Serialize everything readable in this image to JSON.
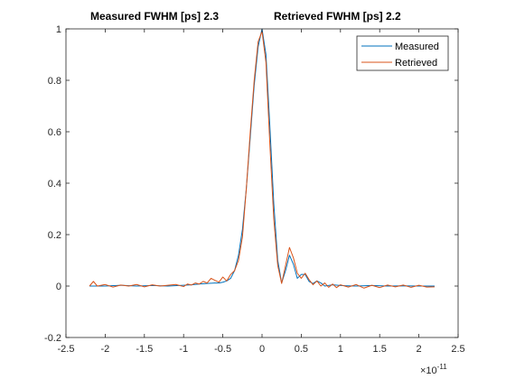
{
  "colors": {
    "measured": "#0072BD",
    "retrieved": "#D95319",
    "axis": "#262626",
    "background": "#ffffff"
  },
  "chart_data": {
    "type": "line",
    "title_left": "Measured FWHM [ps]  2.3",
    "title_right": "Retrieved FWHM [ps]  2.2",
    "xlabel": "",
    "ylabel": "",
    "xlim": [
      -2.5e-11,
      2.5e-11
    ],
    "ylim": [
      -0.2,
      1.0
    ],
    "x_exponent_label": "×10",
    "x_exponent_power": "-11",
    "x_tick_values": [
      -2.5,
      -2,
      -1.5,
      -1,
      -0.5,
      0,
      0.5,
      1,
      1.5,
      2,
      2.5
    ],
    "x_tick_labels": [
      "-2.5",
      "-2",
      "-1.5",
      "-1",
      "-0.5",
      "0",
      "0.5",
      "1",
      "1.5",
      "2",
      "2.5"
    ],
    "y_tick_values": [
      -0.2,
      0,
      0.2,
      0.4,
      0.6,
      0.8,
      1.0
    ],
    "y_tick_labels": [
      "-0.2",
      "0",
      "0.2",
      "0.4",
      "0.6",
      "0.8",
      "1"
    ],
    "grid": false,
    "legend": {
      "placement": "top-right",
      "entries": [
        "Measured",
        "Retrieved"
      ]
    },
    "series": [
      {
        "name": "Measured",
        "x": [
          -2.2,
          -2.0,
          -1.8,
          -1.6,
          -1.4,
          -1.2,
          -1.0,
          -0.9,
          -0.8,
          -0.7,
          -0.6,
          -0.55,
          -0.5,
          -0.45,
          -0.4,
          -0.35,
          -0.3,
          -0.25,
          -0.2,
          -0.15,
          -0.1,
          -0.05,
          0,
          0.05,
          0.1,
          0.15,
          0.2,
          0.25,
          0.3,
          0.35,
          0.4,
          0.45,
          0.5,
          0.55,
          0.6,
          0.65,
          0.7,
          0.75,
          0.8,
          0.9,
          1.0,
          1.2,
          1.4,
          1.6,
          1.8,
          2.0,
          2.2
        ],
        "y": [
          0.0,
          0.0,
          0.003,
          0.0,
          0.002,
          0.0,
          0.003,
          0.005,
          0.008,
          0.01,
          0.012,
          0.012,
          0.015,
          0.02,
          0.03,
          0.06,
          0.12,
          0.22,
          0.38,
          0.58,
          0.78,
          0.93,
          1.0,
          0.9,
          0.62,
          0.32,
          0.1,
          0.012,
          0.06,
          0.12,
          0.085,
          0.03,
          0.045,
          0.045,
          0.018,
          0.01,
          0.02,
          0.012,
          0.0,
          0.005,
          0.002,
          0.0,
          0.002,
          0.0,
          0.001,
          0.0,
          0.0
        ]
      },
      {
        "name": "Retrieved",
        "x": [
          -2.2,
          -2.15,
          -2.1,
          -2.0,
          -1.9,
          -1.8,
          -1.7,
          -1.6,
          -1.5,
          -1.4,
          -1.3,
          -1.2,
          -1.1,
          -1.0,
          -0.95,
          -0.9,
          -0.85,
          -0.8,
          -0.75,
          -0.7,
          -0.65,
          -0.6,
          -0.55,
          -0.5,
          -0.45,
          -0.4,
          -0.35,
          -0.3,
          -0.25,
          -0.2,
          -0.15,
          -0.1,
          -0.05,
          0,
          0.05,
          0.1,
          0.15,
          0.2,
          0.25,
          0.3,
          0.35,
          0.4,
          0.45,
          0.5,
          0.55,
          0.6,
          0.65,
          0.7,
          0.75,
          0.8,
          0.85,
          0.9,
          0.95,
          1.0,
          1.1,
          1.2,
          1.3,
          1.4,
          1.5,
          1.6,
          1.7,
          1.8,
          1.9,
          2.0,
          2.1,
          2.2
        ],
        "y": [
          0.0,
          0.018,
          0.0,
          0.006,
          -0.004,
          0.004,
          0.0,
          0.006,
          -0.003,
          0.005,
          0.0,
          0.003,
          0.006,
          -0.002,
          0.008,
          0.004,
          0.012,
          0.008,
          0.018,
          0.012,
          0.03,
          0.022,
          0.015,
          0.035,
          0.02,
          0.045,
          0.06,
          0.1,
          0.19,
          0.38,
          0.6,
          0.8,
          0.95,
          0.99,
          0.87,
          0.55,
          0.26,
          0.08,
          0.01,
          0.08,
          0.15,
          0.11,
          0.05,
          0.03,
          0.05,
          0.025,
          0.005,
          0.02,
          0.0,
          0.012,
          -0.005,
          0.008,
          -0.006,
          0.005,
          -0.004,
          0.006,
          -0.008,
          0.003,
          -0.006,
          0.004,
          -0.003,
          0.004,
          -0.005,
          0.003,
          -0.004,
          -0.003
        ]
      }
    ]
  }
}
